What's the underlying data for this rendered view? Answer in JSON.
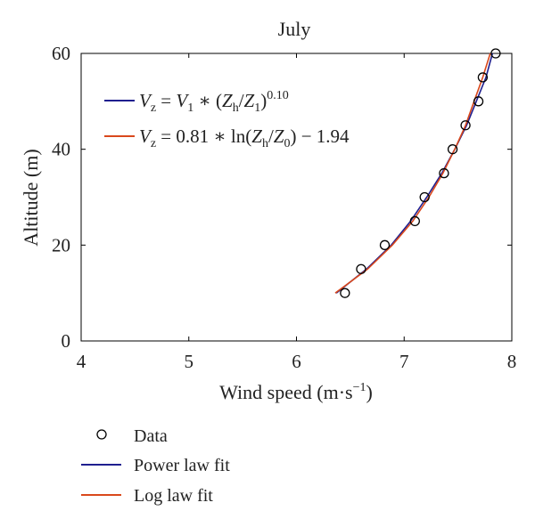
{
  "chart_data": {
    "type": "scatter",
    "title": "July",
    "xlabel": "Wind speed (m·s",
    "xlabel_sup": "−1",
    "xlabel_tail": ")",
    "ylabel": "Altitude (m)",
    "xlim": [
      4,
      8
    ],
    "ylim": [
      0,
      60
    ],
    "xticks": [
      4,
      5,
      6,
      7,
      8
    ],
    "yticks": [
      0,
      20,
      40,
      60
    ],
    "grid": false,
    "legend_position": "below-left",
    "series": [
      {
        "name": "Data",
        "kind": "markers",
        "marker": "open-circle",
        "color": "#000000",
        "points": [
          {
            "x": 6.45,
            "y": 10
          },
          {
            "x": 6.6,
            "y": 15
          },
          {
            "x": 6.82,
            "y": 20
          },
          {
            "x": 7.1,
            "y": 25
          },
          {
            "x": 7.19,
            "y": 30
          },
          {
            "x": 7.37,
            "y": 35
          },
          {
            "x": 7.45,
            "y": 40
          },
          {
            "x": 7.57,
            "y": 45
          },
          {
            "x": 7.69,
            "y": 50
          },
          {
            "x": 7.73,
            "y": 55
          },
          {
            "x": 7.85,
            "y": 60
          }
        ]
      },
      {
        "name": "Power law fit",
        "kind": "line",
        "color": "#1f1f8f",
        "points": [
          {
            "x": 6.37,
            "y": 10
          },
          {
            "x": 6.65,
            "y": 15
          },
          {
            "x": 6.88,
            "y": 20
          },
          {
            "x": 7.06,
            "y": 25
          },
          {
            "x": 7.21,
            "y": 30
          },
          {
            "x": 7.35,
            "y": 35
          },
          {
            "x": 7.47,
            "y": 40
          },
          {
            "x": 7.58,
            "y": 45
          },
          {
            "x": 7.67,
            "y": 50
          },
          {
            "x": 7.76,
            "y": 55
          },
          {
            "x": 7.82,
            "y": 60
          }
        ]
      },
      {
        "name": "Log law fit",
        "kind": "line",
        "color": "#d9481c",
        "points": [
          {
            "x": 6.36,
            "y": 10
          },
          {
            "x": 6.66,
            "y": 15
          },
          {
            "x": 6.89,
            "y": 20
          },
          {
            "x": 7.08,
            "y": 25
          },
          {
            "x": 7.23,
            "y": 30
          },
          {
            "x": 7.36,
            "y": 35
          },
          {
            "x": 7.47,
            "y": 40
          },
          {
            "x": 7.57,
            "y": 45
          },
          {
            "x": 7.65,
            "y": 50
          },
          {
            "x": 7.73,
            "y": 55
          },
          {
            "x": 7.8,
            "y": 60
          }
        ]
      }
    ],
    "annotations": [
      {
        "series": "Power law fit",
        "parts": [
          "V",
          "z",
          " = ",
          "V",
          "1",
          " ∗ (",
          "Z",
          "h",
          "/",
          "Z",
          "1",
          ")",
          "0.10"
        ]
      },
      {
        "series": "Log law fit",
        "parts": [
          "V",
          "z",
          " = 0.81 ∗ ln(",
          "Z",
          "h",
          "/",
          "Z",
          "0",
          ") − 1.94"
        ]
      }
    ]
  }
}
